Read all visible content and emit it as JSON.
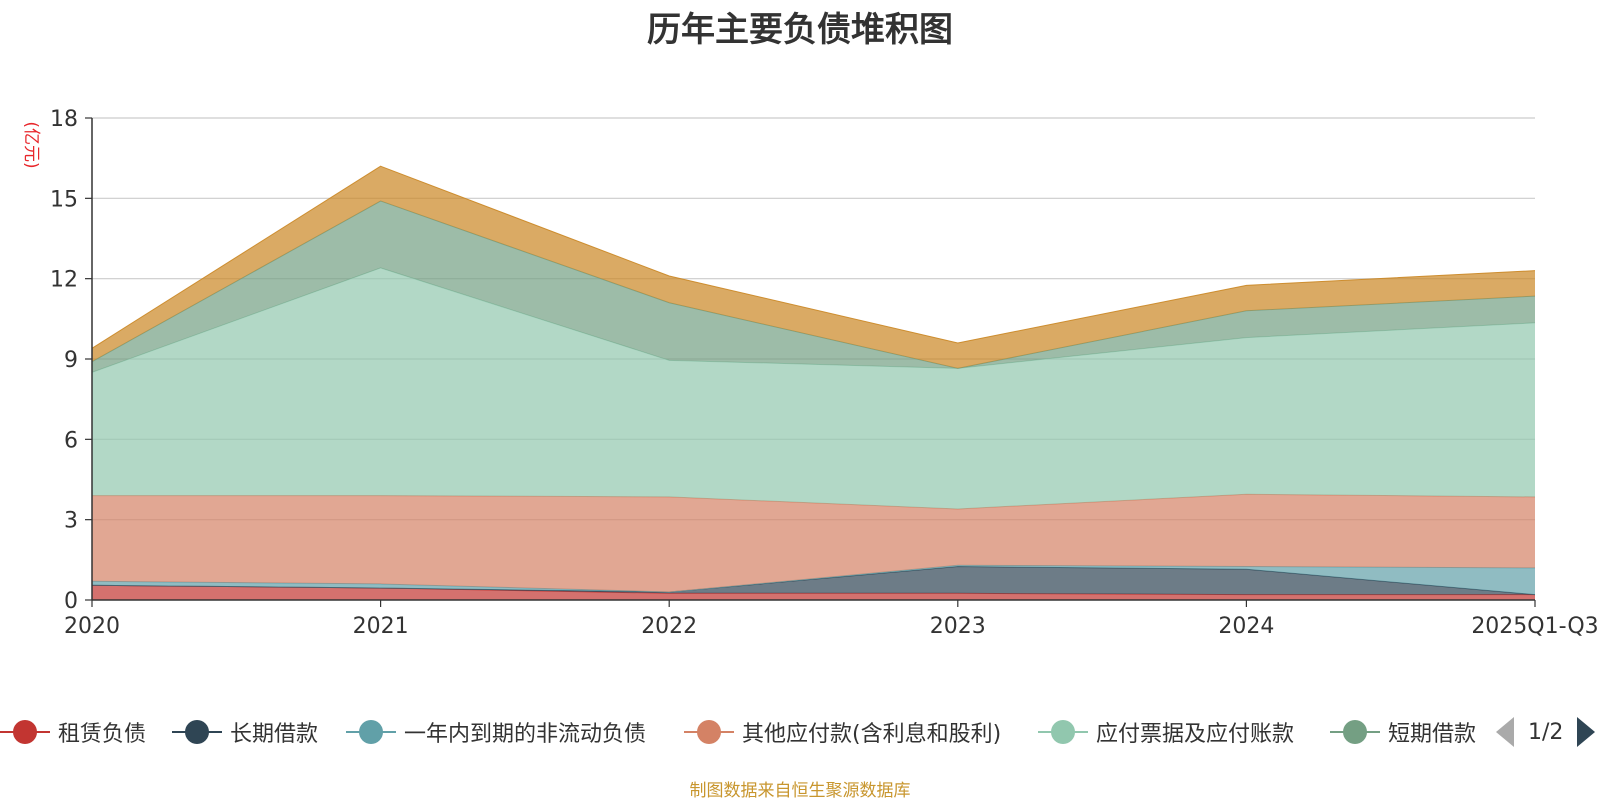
{
  "chart_data": {
    "type": "area",
    "stacked": true,
    "title": "历年主要负债堆积图",
    "ylabel": "(亿元)",
    "ylim": [
      0,
      18
    ],
    "yticks": [
      0,
      3,
      6,
      9,
      12,
      15,
      18
    ],
    "categories": [
      "2020",
      "2021",
      "2022",
      "2023",
      "2024",
      "2025Q1-Q3"
    ],
    "series": [
      {
        "name": "租赁负债",
        "color": "#c23531",
        "values": [
          0.55,
          0.45,
          0.25,
          0.25,
          0.2,
          0.2
        ]
      },
      {
        "name": "长期借款",
        "color": "#2f4554",
        "values": [
          0,
          0,
          0.05,
          1.0,
          0.95,
          0
        ]
      },
      {
        "name": "一年内到期的非流动负债",
        "color": "#61a0a8",
        "values": [
          0.15,
          0.15,
          0,
          0.05,
          0.1,
          1.0
        ]
      },
      {
        "name": "其他应付款(含利息和股利)",
        "color": "#d48265",
        "values": [
          3.2,
          3.3,
          3.55,
          2.1,
          2.7,
          2.65
        ]
      },
      {
        "name": "应付票据及应付账款",
        "color": "#91c7ae",
        "values": [
          4.6,
          8.5,
          5.1,
          5.25,
          5.85,
          6.5
        ]
      },
      {
        "name": "短期借款",
        "color": "#749f83",
        "values": [
          0.4,
          2.5,
          2.15,
          0,
          1.0,
          1.0
        ]
      },
      {
        "name": "",
        "color": "#ca8622",
        "values": [
          0.5,
          1.3,
          1.0,
          0.95,
          0.95,
          0.95
        ]
      }
    ],
    "legend": {
      "position": "bottom",
      "page": "1/2"
    }
  },
  "source_note": "制图数据来自恒生聚源数据库"
}
